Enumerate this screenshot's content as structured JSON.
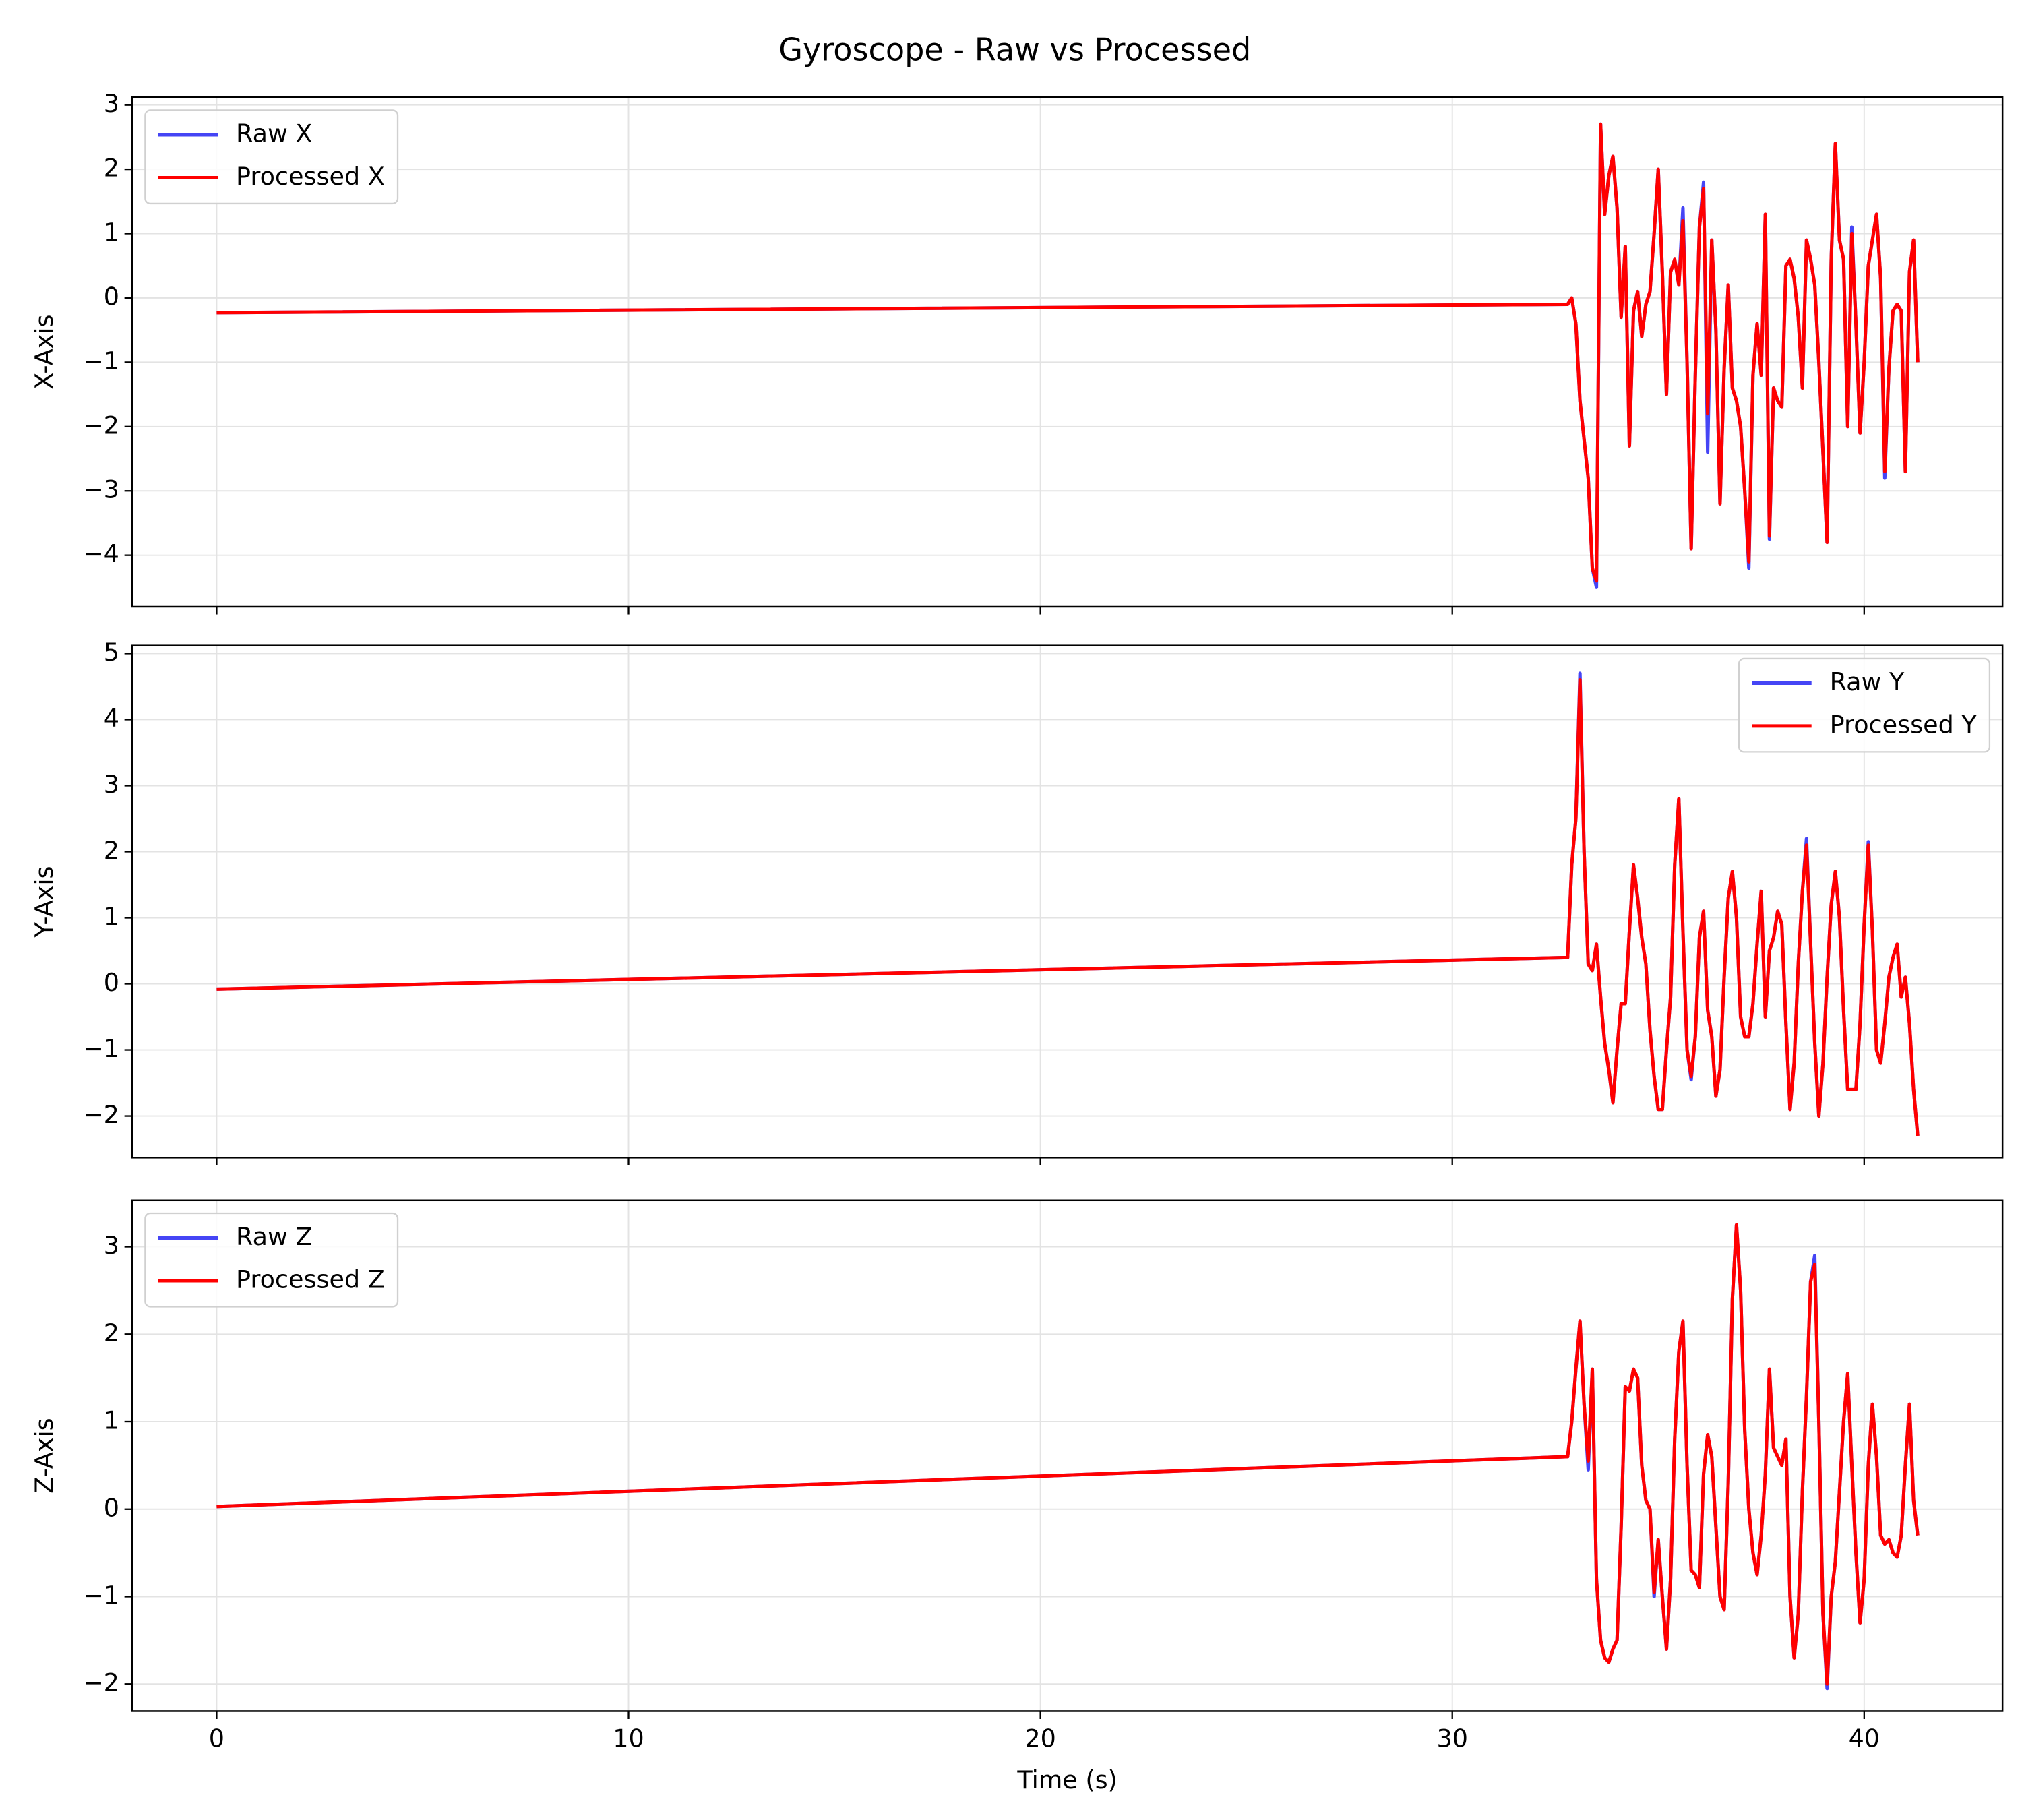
{
  "title": "Gyroscope - Raw vs Processed",
  "chart_data": [
    {
      "type": "line",
      "ylabel": "X-Axis",
      "legend": "upper left",
      "grid": true,
      "xlim": [
        -2.05,
        43.36
      ],
      "xticks": [
        0,
        10,
        20,
        30,
        40
      ],
      "ylim": [
        -4.8,
        3.12
      ],
      "yticks": [
        {
          "value": -4,
          "label": "−4"
        },
        {
          "value": -3,
          "label": "−3"
        },
        {
          "value": -2,
          "label": "−2"
        },
        {
          "value": -1,
          "label": "−1"
        },
        0,
        1,
        2,
        3
      ],
      "x": [
        0,
        32.8,
        32.9,
        33.0,
        33.1,
        33.2,
        33.3,
        33.4,
        33.5,
        33.6,
        33.7,
        33.8,
        33.9,
        34.0,
        34.1,
        34.2,
        34.3,
        34.4,
        34.5,
        34.6,
        34.7,
        34.8,
        34.9,
        35.0,
        35.1,
        35.2,
        35.3,
        35.4,
        35.5,
        35.6,
        35.7,
        35.8,
        35.9,
        36.0,
        36.1,
        36.2,
        36.3,
        36.4,
        36.5,
        36.6,
        36.7,
        36.8,
        36.9,
        37.0,
        37.1,
        37.2,
        37.3,
        37.4,
        37.5,
        37.6,
        37.7,
        37.8,
        37.9,
        38.0,
        38.1,
        38.2,
        38.3,
        38.4,
        38.5,
        38.6,
        38.7,
        38.8,
        38.9,
        39.0,
        39.1,
        39.2,
        39.3,
        39.4,
        39.5,
        39.6,
        39.7,
        39.8,
        39.9,
        40.0,
        40.1,
        40.2,
        40.3,
        40.4,
        40.5,
        40.6,
        40.7,
        40.8,
        40.9,
        41.0,
        41.1,
        41.2,
        41.3
      ],
      "series": [
        {
          "name": "Raw X",
          "color": "#4545f5",
          "values": [
            -0.23,
            -0.1,
            0.0,
            -0.4,
            -1.6,
            -2.2,
            -2.8,
            -4.2,
            -4.5,
            2.7,
            1.3,
            1.9,
            2.2,
            1.4,
            -0.3,
            0.8,
            -2.3,
            -0.2,
            0.1,
            -0.6,
            -0.1,
            0.1,
            1.0,
            2.0,
            0.4,
            -1.5,
            0.4,
            0.6,
            0.2,
            1.4,
            -1.0,
            -3.9,
            -1.2,
            1.1,
            1.8,
            -2.4,
            0.9,
            -0.5,
            -3.2,
            -1.1,
            0.2,
            -1.4,
            -1.6,
            -2.0,
            -3.0,
            -4.2,
            -1.2,
            -0.4,
            -1.2,
            1.3,
            -3.75,
            -1.4,
            -1.6,
            -1.7,
            0.5,
            0.6,
            0.3,
            -0.3,
            -1.4,
            0.9,
            0.6,
            0.2,
            -1.0,
            -2.4,
            -3.8,
            0.6,
            2.4,
            0.9,
            0.6,
            -2.0,
            1.1,
            -0.4,
            -2.1,
            -1.0,
            0.5,
            0.9,
            1.3,
            0.3,
            -2.8,
            -1.1,
            -0.2,
            -0.1,
            -0.2,
            -2.7,
            0.4,
            0.9,
            -1.0
          ]
        },
        {
          "name": "Processed X",
          "color": "#ff0000",
          "values": [
            -0.23,
            -0.1,
            0.0,
            -0.4,
            -1.6,
            -2.2,
            -2.8,
            -4.2,
            -4.4,
            2.7,
            1.3,
            1.9,
            2.2,
            1.4,
            -0.3,
            0.8,
            -2.3,
            -0.2,
            0.1,
            -0.6,
            -0.1,
            0.1,
            1.0,
            2.0,
            0.4,
            -1.5,
            0.4,
            0.6,
            0.2,
            1.2,
            -1.0,
            -3.9,
            -1.2,
            1.1,
            1.7,
            -1.8,
            0.9,
            -0.5,
            -3.2,
            -1.1,
            0.2,
            -1.4,
            -1.6,
            -2.0,
            -3.0,
            -4.1,
            -1.2,
            -0.4,
            -1.2,
            1.3,
            -3.7,
            -1.4,
            -1.6,
            -1.7,
            0.5,
            0.6,
            0.3,
            -0.3,
            -1.4,
            0.9,
            0.6,
            0.2,
            -1.0,
            -2.4,
            -3.8,
            0.6,
            2.4,
            0.9,
            0.6,
            -2.0,
            1.0,
            -0.4,
            -2.1,
            -1.0,
            0.5,
            0.9,
            1.3,
            0.3,
            -2.7,
            -1.1,
            -0.2,
            -0.1,
            -0.2,
            -2.7,
            0.4,
            0.9,
            -1.0
          ]
        }
      ]
    },
    {
      "type": "line",
      "ylabel": "Y-Axis",
      "legend": "upper right",
      "grid": true,
      "xlim": [
        -2.05,
        43.36
      ],
      "xticks": [
        0,
        10,
        20,
        30,
        40
      ],
      "ylim": [
        -2.63,
        5.12
      ],
      "yticks": [
        {
          "value": -2,
          "label": "−2"
        },
        {
          "value": -1,
          "label": "−1"
        },
        0,
        1,
        2,
        3,
        4,
        5
      ],
      "x": [
        0,
        32.8,
        32.9,
        33.0,
        33.1,
        33.2,
        33.3,
        33.4,
        33.5,
        33.6,
        33.7,
        33.8,
        33.9,
        34.0,
        34.1,
        34.2,
        34.3,
        34.4,
        34.5,
        34.6,
        34.7,
        34.8,
        34.9,
        35.0,
        35.1,
        35.2,
        35.3,
        35.4,
        35.5,
        35.6,
        35.7,
        35.8,
        35.9,
        36.0,
        36.1,
        36.2,
        36.3,
        36.4,
        36.5,
        36.6,
        36.7,
        36.8,
        36.9,
        37.0,
        37.1,
        37.2,
        37.3,
        37.4,
        37.5,
        37.6,
        37.7,
        37.8,
        37.9,
        38.0,
        38.1,
        38.2,
        38.3,
        38.4,
        38.5,
        38.6,
        38.7,
        38.8,
        38.9,
        39.0,
        39.1,
        39.2,
        39.3,
        39.4,
        39.5,
        39.6,
        39.7,
        39.8,
        39.9,
        40.0,
        40.1,
        40.2,
        40.3,
        40.4,
        40.5,
        40.6,
        40.7,
        40.8,
        40.9,
        41.0,
        41.1,
        41.2,
        41.3
      ],
      "series": [
        {
          "name": "Raw Y",
          "color": "#4545f5",
          "values": [
            -0.08,
            0.4,
            1.8,
            2.5,
            4.7,
            2.0,
            0.3,
            0.2,
            0.6,
            -0.2,
            -0.9,
            -1.3,
            -1.8,
            -1.0,
            -0.3,
            -0.3,
            0.8,
            1.8,
            1.3,
            0.7,
            0.3,
            -0.7,
            -1.4,
            -1.9,
            -1.9,
            -1.0,
            -0.2,
            1.8,
            2.8,
            0.8,
            -1.0,
            -1.45,
            -0.8,
            0.7,
            1.1,
            -0.4,
            -0.8,
            -1.7,
            -1.3,
            0.1,
            1.3,
            1.7,
            1.0,
            -0.5,
            -0.8,
            -0.8,
            -0.3,
            0.6,
            1.4,
            -0.5,
            0.5,
            0.7,
            1.1,
            0.9,
            -0.6,
            -1.9,
            -1.2,
            0.3,
            1.4,
            2.2,
            0.6,
            -0.9,
            -2.0,
            -1.2,
            0.1,
            1.2,
            1.7,
            1.0,
            -0.4,
            -1.6,
            -1.6,
            -1.6,
            -0.6,
            0.9,
            2.15,
            0.8,
            -1.0,
            -1.2,
            -0.6,
            0.1,
            0.4,
            0.6,
            -0.2,
            0.1,
            -0.6,
            -1.6,
            -2.3
          ]
        },
        {
          "name": "Processed Y",
          "color": "#ff0000",
          "values": [
            -0.08,
            0.4,
            1.8,
            2.5,
            4.6,
            2.0,
            0.3,
            0.2,
            0.6,
            -0.2,
            -0.9,
            -1.3,
            -1.8,
            -1.0,
            -0.3,
            -0.3,
            0.8,
            1.8,
            1.3,
            0.7,
            0.3,
            -0.7,
            -1.4,
            -1.9,
            -1.9,
            -1.0,
            -0.2,
            1.8,
            2.8,
            0.8,
            -1.0,
            -1.4,
            -0.8,
            0.7,
            1.1,
            -0.4,
            -0.8,
            -1.7,
            -1.3,
            0.1,
            1.3,
            1.7,
            1.0,
            -0.5,
            -0.8,
            -0.8,
            -0.3,
            0.6,
            1.4,
            -0.5,
            0.5,
            0.7,
            1.1,
            0.9,
            -0.6,
            -1.9,
            -1.2,
            0.3,
            1.4,
            2.1,
            0.6,
            -0.9,
            -2.0,
            -1.2,
            0.1,
            1.2,
            1.7,
            1.0,
            -0.4,
            -1.6,
            -1.6,
            -1.6,
            -0.6,
            0.9,
            2.1,
            0.8,
            -1.0,
            -1.2,
            -0.6,
            0.1,
            0.4,
            0.6,
            -0.2,
            0.1,
            -0.6,
            -1.6,
            -2.3
          ]
        }
      ]
    },
    {
      "type": "line",
      "ylabel": "Z-Axis",
      "xlabel": "Time (s)",
      "legend": "upper left",
      "grid": true,
      "xlim": [
        -2.05,
        43.36
      ],
      "xticks": [
        0,
        10,
        20,
        30,
        40
      ],
      "ylim": [
        -2.31,
        3.53
      ],
      "yticks": [
        {
          "value": -2,
          "label": "−2"
        },
        {
          "value": -1,
          "label": "−1"
        },
        0,
        1,
        2,
        3
      ],
      "x": [
        0,
        32.8,
        32.9,
        33.0,
        33.1,
        33.2,
        33.3,
        33.4,
        33.5,
        33.6,
        33.7,
        33.8,
        33.9,
        34.0,
        34.1,
        34.2,
        34.3,
        34.4,
        34.5,
        34.6,
        34.7,
        34.8,
        34.9,
        35.0,
        35.1,
        35.2,
        35.3,
        35.4,
        35.5,
        35.6,
        35.7,
        35.8,
        35.9,
        36.0,
        36.1,
        36.2,
        36.3,
        36.4,
        36.5,
        36.6,
        36.7,
        36.8,
        36.9,
        37.0,
        37.1,
        37.2,
        37.3,
        37.4,
        37.5,
        37.6,
        37.7,
        37.8,
        37.9,
        38.0,
        38.1,
        38.2,
        38.3,
        38.4,
        38.5,
        38.6,
        38.7,
        38.8,
        38.9,
        39.0,
        39.1,
        39.2,
        39.3,
        39.4,
        39.5,
        39.6,
        39.7,
        39.8,
        39.9,
        40.0,
        40.1,
        40.2,
        40.3,
        40.4,
        40.5,
        40.6,
        40.7,
        40.8,
        40.9,
        41.0,
        41.1,
        41.2,
        41.3
      ],
      "series": [
        {
          "name": "Raw Z",
          "color": "#4545f5",
          "values": [
            0.03,
            0.6,
            1.0,
            1.6,
            2.15,
            1.2,
            0.45,
            1.6,
            -0.8,
            -1.5,
            -1.7,
            -1.75,
            -1.6,
            -1.5,
            -0.2,
            1.4,
            1.35,
            1.6,
            1.5,
            0.5,
            0.1,
            0.0,
            -1.0,
            -0.35,
            -1.0,
            -1.6,
            -0.8,
            0.8,
            1.8,
            2.15,
            0.5,
            -0.7,
            -0.75,
            -0.9,
            0.4,
            0.85,
            0.6,
            -0.2,
            -1.0,
            -1.15,
            0.3,
            2.4,
            3.25,
            2.5,
            0.9,
            0.0,
            -0.5,
            -0.75,
            -0.3,
            0.4,
            1.6,
            0.7,
            0.6,
            0.5,
            0.8,
            -1.0,
            -1.7,
            -1.2,
            0.2,
            1.3,
            2.6,
            2.9,
            1.0,
            -1.2,
            -2.05,
            -1.0,
            -0.6,
            0.2,
            1.0,
            1.55,
            0.5,
            -0.5,
            -1.3,
            -0.8,
            0.5,
            1.2,
            0.6,
            -0.3,
            -0.4,
            -0.35,
            -0.5,
            -0.55,
            -0.3,
            0.5,
            1.2,
            0.1,
            -0.3
          ]
        },
        {
          "name": "Processed Z",
          "color": "#ff0000",
          "values": [
            0.03,
            0.6,
            1.0,
            1.6,
            2.15,
            1.2,
            0.55,
            1.6,
            -0.8,
            -1.5,
            -1.7,
            -1.75,
            -1.6,
            -1.5,
            -0.2,
            1.4,
            1.35,
            1.6,
            1.5,
            0.5,
            0.1,
            0.0,
            -0.95,
            -0.35,
            -1.0,
            -1.6,
            -0.8,
            0.8,
            1.8,
            2.15,
            0.5,
            -0.7,
            -0.75,
            -0.9,
            0.4,
            0.85,
            0.6,
            -0.2,
            -1.0,
            -1.15,
            0.3,
            2.4,
            3.25,
            2.5,
            0.9,
            0.0,
            -0.5,
            -0.75,
            -0.3,
            0.4,
            1.6,
            0.7,
            0.6,
            0.5,
            0.8,
            -1.0,
            -1.7,
            -1.2,
            0.2,
            1.3,
            2.6,
            2.8,
            1.0,
            -1.2,
            -2.0,
            -1.0,
            -0.6,
            0.2,
            1.0,
            1.55,
            0.5,
            -0.5,
            -1.3,
            -0.8,
            0.5,
            1.2,
            0.6,
            -0.3,
            -0.4,
            -0.35,
            -0.5,
            -0.55,
            -0.3,
            0.5,
            1.2,
            0.1,
            -0.3
          ]
        }
      ]
    }
  ]
}
